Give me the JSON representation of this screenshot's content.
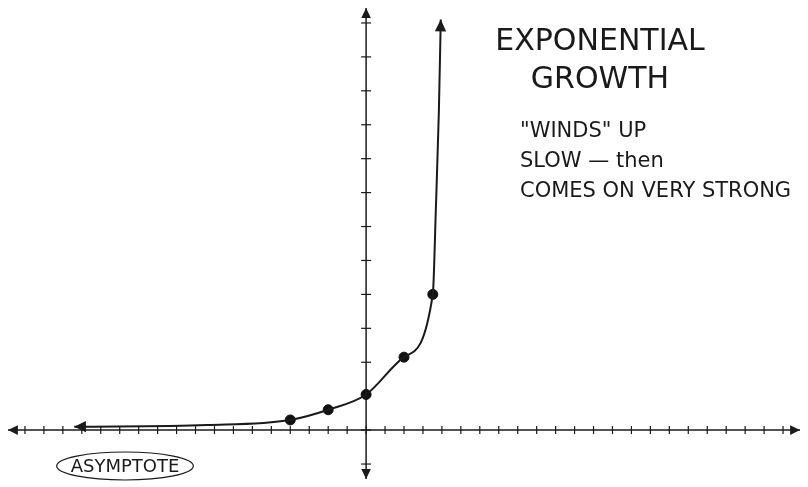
{
  "chart_data": {
    "type": "line",
    "title": "EXPONENTIAL GROWTH",
    "annotations": [
      "\"WINDS\" UP",
      "SLOW — then",
      "COMES ON VERY STRONG",
      "ASYMPTOTE"
    ],
    "xlim": [
      -9.5,
      11.5
    ],
    "xticks": [
      -9,
      -8.5,
      -8,
      -7.5,
      -7,
      -6.5,
      -6,
      -5.5,
      -5,
      -4.5,
      -4,
      -3.5,
      -3,
      -2.5,
      -2,
      -1.5,
      -1,
      -0.5,
      0,
      0.5,
      1,
      1.5,
      2,
      2.5,
      3,
      3.5,
      4,
      4.5,
      5,
      5.5,
      6,
      6.5,
      7,
      7.5,
      8,
      8.5,
      9,
      9.5,
      10,
      10.5,
      11
    ],
    "ylim": [
      -1.5,
      12.5
    ],
    "yticks": [
      -1,
      0,
      1,
      2,
      3,
      4,
      5,
      6,
      7,
      8,
      9,
      10,
      11,
      12
    ],
    "grid": false,
    "tick_labels": false,
    "series": [
      {
        "type": "line",
        "color": "#1a1a1a",
        "marker": "none",
        "line_style": "solid",
        "x": [
          -7.7,
          -4.2,
          -2,
          -1,
          0,
          1,
          1.76,
          1.84,
          1.92,
          1.97
        ],
        "values": [
          0.1,
          0.15,
          0.3,
          0.6,
          1.05,
          2.15,
          4,
          6.5,
          9.4,
          12.1
        ]
      },
      {
        "type": "scatter",
        "color": "#111111",
        "marker": "circle",
        "x": [
          -2,
          -1,
          0,
          1,
          1.76
        ],
        "values": [
          0.3,
          0.6,
          1.05,
          2.15,
          4
        ]
      }
    ]
  }
}
